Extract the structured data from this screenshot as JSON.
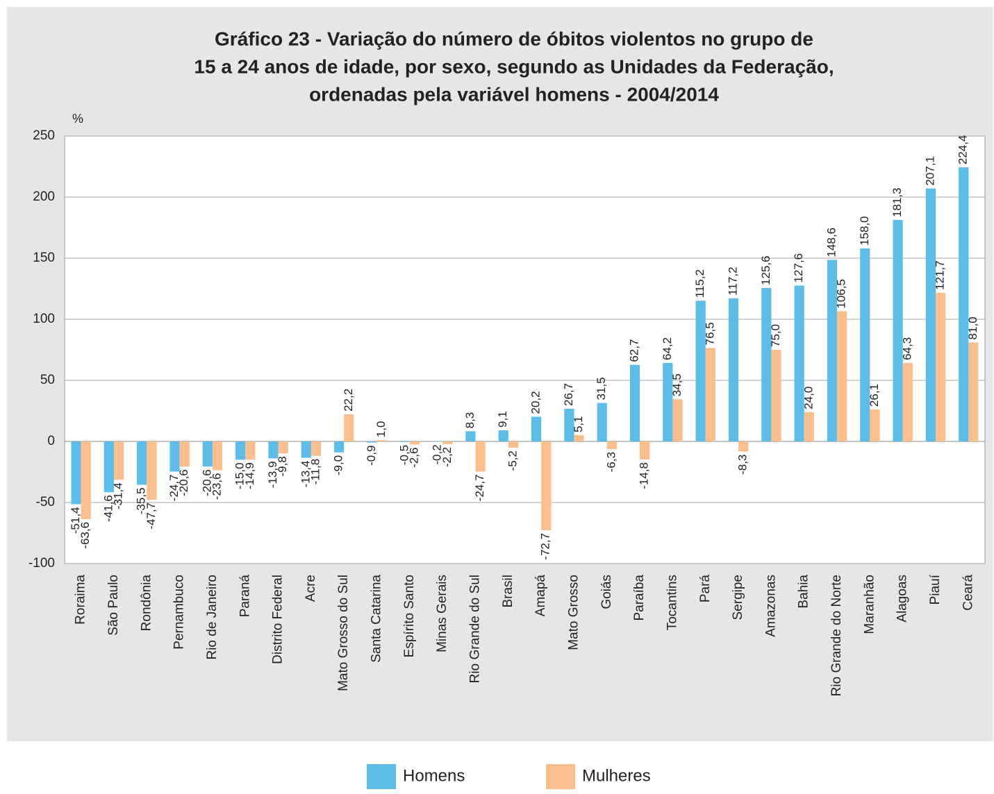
{
  "chart_data": {
    "type": "bar",
    "title": [
      "Gráfico 23 - Variação do número de óbitos violentos no grupo de",
      "15 a 24 anos de idade, por sexo, segundo as Unidades da Federação,",
      "ordenadas pela variável homens - 2004/2014"
    ],
    "y_label": "%",
    "categories": [
      "Roraima",
      "São Paulo",
      "Rondônia",
      "Pernambuco",
      "Rio de Janeiro",
      "Paraná",
      "Distrito Federal",
      "Acre",
      "Mato Grosso do Sul",
      "Santa Catarina",
      "Espírito Santo",
      "Minas Gerais",
      "Rio Grande do Sul",
      "Brasil",
      "Amapá",
      "Mato Grosso",
      "Goiás",
      "Paraíba",
      "Tocantins",
      "Pará",
      "Sergipe",
      "Amazonas",
      "Bahia",
      "Rio Grande do Norte",
      "Maranhão",
      "Alagoas",
      "Piauí",
      "Ceará"
    ],
    "series": [
      {
        "name": "Homens",
        "color": "#5cbde9",
        "values": [
          -51.4,
          -41.6,
          -35.5,
          -24.7,
          -20.6,
          -15.0,
          -13.9,
          -13.4,
          -9.0,
          -0.9,
          -0.5,
          -0.2,
          8.3,
          9.1,
          20.2,
          26.7,
          31.5,
          62.7,
          64.2,
          115.2,
          117.2,
          125.6,
          127.6,
          148.6,
          158.0,
          181.3,
          207.1,
          224.4
        ],
        "value_labels": [
          "-51,4",
          "-41,6",
          "-35,5",
          "-24,7",
          "-20,6",
          "-15,0",
          "-13,9",
          "-13,4",
          "-9,0",
          "-0,9",
          "-0,5",
          "-0,2",
          "8,3",
          "9,1",
          "20,2",
          "26,7",
          "31,5",
          "62,7",
          "64,2",
          "115,2",
          "117,2",
          "125,6",
          "127,6",
          "148,6",
          "158,0",
          "181,3",
          "207,1",
          "224,4"
        ]
      },
      {
        "name": "Mulheres",
        "color": "#fbbf8e",
        "values": [
          -63.6,
          -31.4,
          -47.7,
          -20.6,
          -23.6,
          -14.9,
          -9.8,
          -11.8,
          22.2,
          1.0,
          -2.6,
          -2.2,
          -24.7,
          -5.2,
          -72.7,
          5.1,
          -6.3,
          -14.8,
          34.5,
          76.5,
          -8.3,
          75.0,
          24.0,
          106.5,
          26.1,
          64.3,
          121.7,
          81.0
        ],
        "value_labels": [
          "-63,6",
          "-31,4",
          "-47,7",
          "-20,6",
          "-23,6",
          "-14,9",
          "-9,8",
          "-11,8",
          "22,2",
          "1,0",
          "-2,6",
          "-2,2",
          "-24,7",
          "-5,2",
          "-72,7",
          "5,1",
          "-6,3",
          "-14,8",
          "34,5",
          "76,5",
          "-8,3",
          "75,0",
          "24,0",
          "106,5",
          "26,1",
          "64,3",
          "121,7",
          "81,0"
        ]
      }
    ],
    "ylim": [
      -100,
      250
    ],
    "yticks": [
      -100,
      -50,
      0,
      50,
      100,
      150,
      200,
      250
    ],
    "grid": true
  }
}
